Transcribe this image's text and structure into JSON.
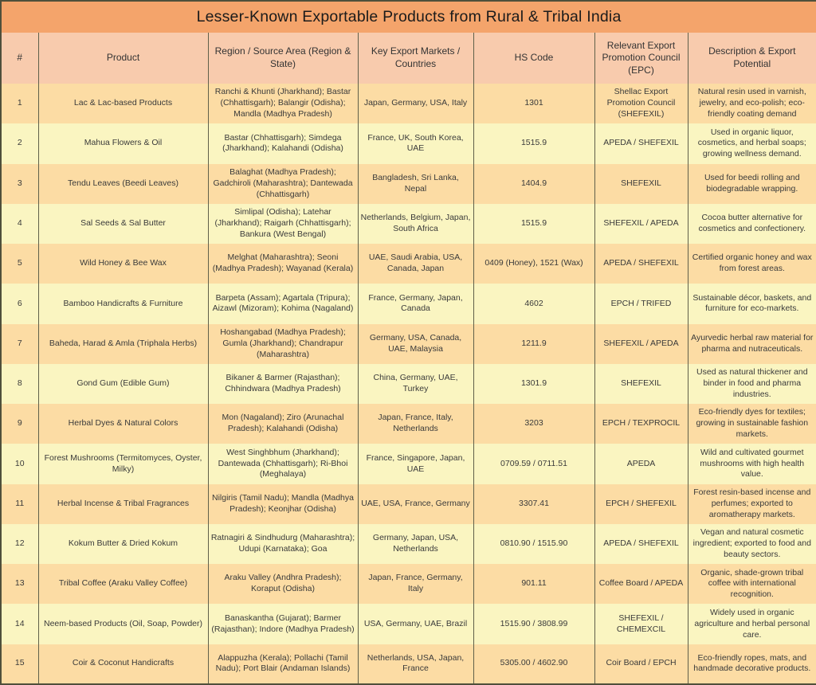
{
  "title": "Lesser-Known Exportable Products from Rural & Tribal India",
  "colors": {
    "title_bg": "#F4A46B",
    "header_bg": "#F8CBAD",
    "row_orange": "#FCDCA4",
    "row_yellow": "#FAF5C1",
    "border": "#60604A",
    "text": "#3A3A3A"
  },
  "table": {
    "columns": [
      "#",
      "Product",
      "Region / Source Area (Region & State)",
      "Key Export Markets / Countries",
      "HS Code",
      "Relevant Export Promotion Council (EPC)",
      "Description & Export Potential"
    ],
    "rows": [
      {
        "num": "1",
        "product": "Lac & Lac-based Products",
        "region": "Ranchi & Khunti (Jharkhand); Bastar (Chhattisgarh); Balangir (Odisha); Mandla (Madhya Pradesh)",
        "markets": "Japan, Germany, USA, Italy",
        "hs_code": "1301",
        "epc": "Shellac Export Promotion Council (SHEFEXIL)",
        "description": "Natural resin used in varnish, jewelry, and eco-polish; eco-friendly coating demand"
      },
      {
        "num": "2",
        "product": "Mahua Flowers & Oil",
        "region": "Bastar (Chhattisgarh); Simdega (Jharkhand); Kalahandi (Odisha)",
        "markets": "France, UK, South Korea, UAE",
        "hs_code": "1515.9",
        "epc": "APEDA / SHEFEXIL",
        "description": "Used in organic liquor, cosmetics, and herbal soaps; growing wellness demand."
      },
      {
        "num": "3",
        "product": "Tendu Leaves (Beedi Leaves)",
        "region": "Balaghat (Madhya Pradesh); Gadchiroli (Maharashtra); Dantewada (Chhattisgarh)",
        "markets": "Bangladesh, Sri Lanka, Nepal",
        "hs_code": "1404.9",
        "epc": "SHEFEXIL",
        "description": "Used for beedi rolling and biodegradable wrapping."
      },
      {
        "num": "4",
        "product": "Sal Seeds & Sal Butter",
        "region": "Simlipal (Odisha); Latehar (Jharkhand); Raigarh (Chhattisgarh); Bankura (West Bengal)",
        "markets": "Netherlands, Belgium, Japan, South Africa",
        "hs_code": "1515.9",
        "epc": "SHEFEXIL / APEDA",
        "description": "Cocoa butter alternative for cosmetics and confectionery."
      },
      {
        "num": "5",
        "product": "Wild Honey & Bee Wax",
        "region": "Melghat (Maharashtra); Seoni (Madhya Pradesh); Wayanad (Kerala)",
        "markets": "UAE, Saudi Arabia, USA, Canada, Japan",
        "hs_code": "0409 (Honey), 1521 (Wax)",
        "epc": "APEDA / SHEFEXIL",
        "description": "Certified organic honey and wax from forest areas."
      },
      {
        "num": "6",
        "product": "Bamboo Handicrafts & Furniture",
        "region": "Barpeta (Assam); Agartala (Tripura); Aizawl (Mizoram); Kohima (Nagaland)",
        "markets": "France, Germany, Japan, Canada",
        "hs_code": "4602",
        "epc": "EPCH / TRIFED",
        "description": "Sustainable décor, baskets, and furniture for eco-markets."
      },
      {
        "num": "7",
        "product": "Baheda, Harad & Amla (Triphala Herbs)",
        "region": "Hoshangabad (Madhya Pradesh); Gumla (Jharkhand); Chandrapur (Maharashtra)",
        "markets": "Germany, USA, Canada, UAE, Malaysia",
        "hs_code": "1211.9",
        "epc": "SHEFEXIL / APEDA",
        "description": "Ayurvedic herbal raw material for pharma and nutraceuticals."
      },
      {
        "num": "8",
        "product": "Gond Gum (Edible Gum)",
        "region": "Bikaner & Barmer (Rajasthan); Chhindwara (Madhya Pradesh)",
        "markets": "China, Germany, UAE, Turkey",
        "hs_code": "1301.9",
        "epc": "SHEFEXIL",
        "description": "Used as natural thickener and binder in food and pharma industries."
      },
      {
        "num": "9",
        "product": "Herbal Dyes & Natural Colors",
        "region": "Mon (Nagaland); Ziro (Arunachal Pradesh); Kalahandi (Odisha)",
        "markets": "Japan, France, Italy, Netherlands",
        "hs_code": "3203",
        "epc": "EPCH / TEXPROCIL",
        "description": "Eco-friendly dyes for textiles; growing in sustainable fashion markets."
      },
      {
        "num": "10",
        "product": "Forest Mushrooms (Termitomyces, Oyster, Milky)",
        "region": "West Singhbhum (Jharkhand); Dantewada (Chhattisgarh); Ri-Bhoi (Meghalaya)",
        "markets": "France, Singapore, Japan, UAE",
        "hs_code": "0709.59 / 0711.51",
        "epc": "APEDA",
        "description": "Wild and cultivated gourmet mushrooms with high health value."
      },
      {
        "num": "11",
        "product": "Herbal Incense & Tribal Fragrances",
        "region": "Nilgiris (Tamil Nadu); Mandla (Madhya Pradesh); Keonjhar (Odisha)",
        "markets": "UAE, USA, France, Germany",
        "hs_code": "3307.41",
        "epc": "EPCH / SHEFEXIL",
        "description": "Forest resin-based incense and perfumes; exported to aromatherapy markets."
      },
      {
        "num": "12",
        "product": "Kokum Butter & Dried Kokum",
        "region": "Ratnagiri & Sindhudurg (Maharashtra); Udupi (Karnataka); Goa",
        "markets": "Germany, Japan, USA, Netherlands",
        "hs_code": "0810.90 / 1515.90",
        "epc": "APEDA / SHEFEXIL",
        "description": "Vegan and natural cosmetic ingredient; exported to food and beauty sectors."
      },
      {
        "num": "13",
        "product": "Tribal Coffee (Araku Valley Coffee)",
        "region": "Araku Valley (Andhra Pradesh); Koraput (Odisha)",
        "markets": "Japan, France, Germany, Italy",
        "hs_code": "901.11",
        "epc": "Coffee Board / APEDA",
        "description": "Organic, shade-grown tribal coffee with international recognition."
      },
      {
        "num": "14",
        "product": "Neem-based Products (Oil, Soap, Powder)",
        "region": "Banaskantha (Gujarat); Barmer (Rajasthan); Indore (Madhya Pradesh)",
        "markets": "USA, Germany, UAE, Brazil",
        "hs_code": "1515.90 / 3808.99",
        "epc": "SHEFEXIL / CHEMEXCIL",
        "description": "Widely used in organic agriculture and herbal personal care."
      },
      {
        "num": "15",
        "product": "Coir & Coconut Handicrafts",
        "region": "Alappuzha (Kerala); Pollachi (Tamil Nadu); Port Blair (Andaman Islands)",
        "markets": "Netherlands, USA, Japan, France",
        "hs_code": "5305.00 / 4602.90",
        "epc": "Coir Board / EPCH",
        "description": "Eco-friendly ropes, mats, and handmade decorative products."
      }
    ]
  }
}
